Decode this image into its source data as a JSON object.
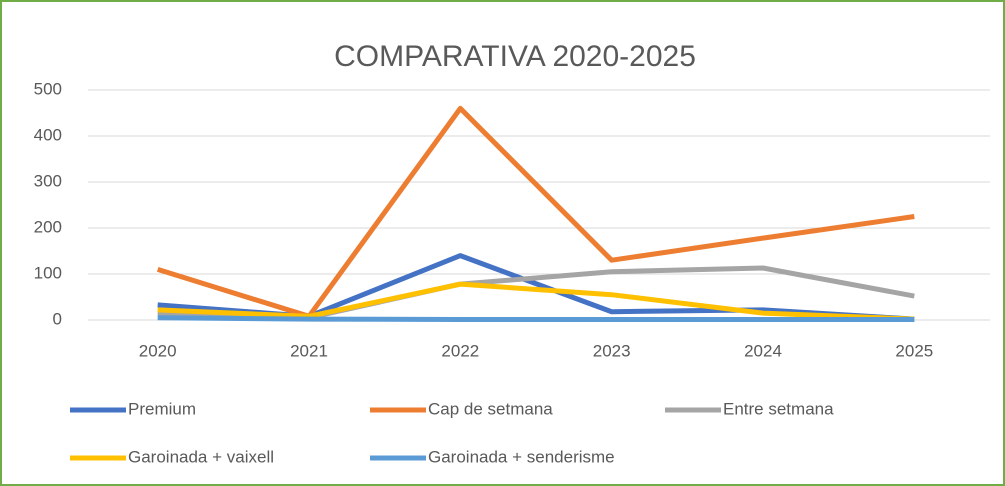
{
  "chart_data": {
    "type": "line",
    "title": "COMPARATIVA 2020-2025",
    "categories": [
      "2020",
      "2021",
      "2022",
      "2023",
      "2024",
      "2025"
    ],
    "series": [
      {
        "name": "Premium",
        "color": "#4472c4",
        "values": [
          33,
          8,
          140,
          18,
          22,
          2
        ]
      },
      {
        "name": "Cap de setmana",
        "color": "#ed7d31",
        "values": [
          110,
          8,
          460,
          130,
          178,
          225
        ]
      },
      {
        "name": "Entre setmana",
        "color": "#a5a5a5",
        "values": [
          15,
          5,
          78,
          105,
          113,
          52
        ]
      },
      {
        "name": "Garoinada + vaixell",
        "color": "#ffc000",
        "values": [
          22,
          8,
          78,
          55,
          15,
          2
        ]
      },
      {
        "name": "Garoinada + senderisme",
        "color": "#5b9bd5",
        "values": [
          5,
          2,
          1,
          1,
          1,
          1
        ]
      }
    ],
    "ylim": [
      0,
      500
    ],
    "yticks": [
      0,
      100,
      200,
      300,
      400,
      500
    ],
    "grid": true,
    "legend": "bottom"
  }
}
